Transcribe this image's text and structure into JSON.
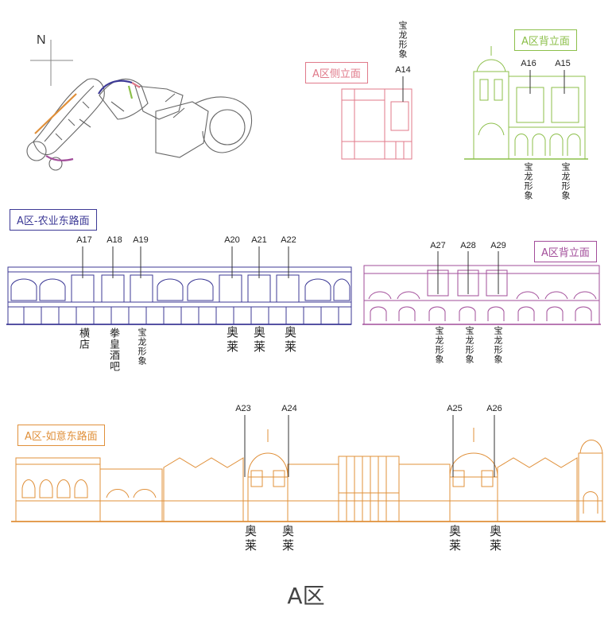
{
  "colors": {
    "side": "#e07a8a",
    "back_green": "#8cbf4a",
    "nongye": "#3d3a96",
    "back_purple": "#a24d9a",
    "ruyi": "#e0903a",
    "map": "#555555"
  },
  "compass": {
    "north": "N"
  },
  "labels": {
    "side_elevation": "A区侧立面",
    "back_elevation_green": "A区背立面",
    "nongye_road": "A区-农业东路面",
    "back_elevation_purple": "A区背立面",
    "ruyi_road": "A区-如意东路面"
  },
  "codes": {
    "a14": "A14",
    "a15": "A15",
    "a16": "A16",
    "a17": "A17",
    "a18": "A18",
    "a19": "A19",
    "a20": "A20",
    "a21": "A21",
    "a22": "A22",
    "a23": "A23",
    "a24": "A24",
    "a25": "A25",
    "a26": "A26",
    "a27": "A27",
    "a28": "A28",
    "a29": "A29"
  },
  "tenants": {
    "a14": "宝龙形象",
    "a16": "宝龙形象",
    "a15": "宝龙形象",
    "a17": "横店",
    "a18": "拳皇酒吧",
    "a19": "宝龙形象",
    "a20": "奥莱",
    "a21": "奥莱",
    "a22": "奥莱",
    "a27": "宝龙形象",
    "a28": "宝龙形象",
    "a29": "宝龙形象",
    "a23": "奥莱",
    "a24": "奥莱",
    "a25": "奥莱",
    "a26": "奥莱"
  },
  "page_title": "A区"
}
